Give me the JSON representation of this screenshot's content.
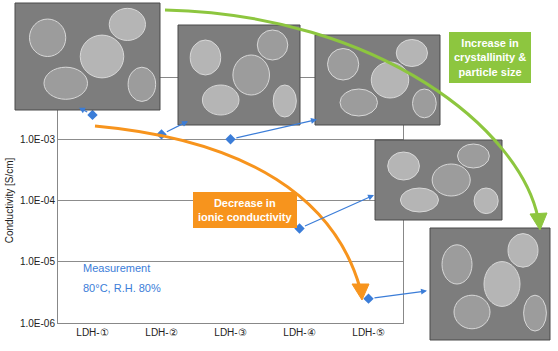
{
  "chart_data": {
    "type": "scatter",
    "categories": [
      "LDH-①",
      "LDH-②",
      "LDH-③",
      "LDH-④",
      "LDH-⑤"
    ],
    "values": [
      0.0025,
      0.0012,
      0.001,
      3.5e-05,
      2.5e-06
    ],
    "color": "#3b7dd8",
    "marker": "diamond",
    "y_label": "Conductivity [S/cm]",
    "log": "y",
    "grid": true,
    "ylim": [
      1e-06,
      0.01
    ],
    "yticks": [
      {
        "value": 1e-06,
        "label": "1.0E-06"
      },
      {
        "value": 1e-05,
        "label": "1.0E-05"
      },
      {
        "value": 0.0001,
        "label": "1.0E-04"
      },
      {
        "value": 0.001,
        "label": "1.0E-03"
      }
    ],
    "annotations": [
      {
        "text": "Decrease in\nionic conductivity",
        "color": "#f7941d"
      },
      {
        "text": "Increase in\ncrystallinity &\nparticle size",
        "color": "#8dc63f"
      },
      {
        "text": "Measurement",
        "color": "#3b7dd8"
      },
      {
        "text": "80°C, R.H. 80%",
        "color": "#3b7dd8"
      }
    ]
  }
}
